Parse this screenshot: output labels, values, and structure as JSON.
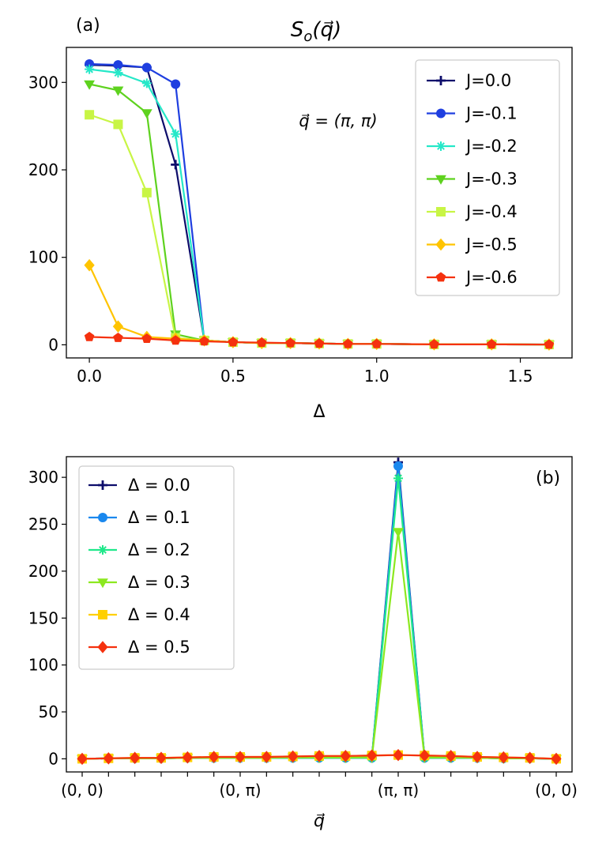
{
  "chart_data": [
    {
      "panel_label": "(a)",
      "type": "line",
      "title": "S_o(q)",
      "title_parts": {
        "main": "S",
        "sub": "o",
        "arg": "(q⃗)"
      },
      "annotation": "q⃗ = (π, π)",
      "xlabel": "Δ",
      "ylabel": "",
      "xlim": [
        -0.08,
        1.68
      ],
      "ylim": [
        -15,
        340
      ],
      "xticks": [
        0.0,
        0.5,
        1.0,
        1.5
      ],
      "xtick_labels": [
        "0.0",
        "0.5",
        "1.0",
        "1.5"
      ],
      "yticks": [
        0,
        100,
        200,
        300
      ],
      "ytick_labels": [
        "0",
        "100",
        "200",
        "300"
      ],
      "x": [
        0.0,
        0.1,
        0.2,
        0.3,
        0.4,
        0.5,
        0.6,
        0.7,
        0.8,
        0.9,
        1.0,
        1.2,
        1.4,
        1.6
      ],
      "legend_position": "top-right",
      "series": [
        {
          "name": "J=0.0",
          "color": "#0d0d6b",
          "marker": "plus",
          "values": [
            320,
            319,
            317,
            206,
            5,
            3,
            2,
            2,
            1.5,
            1,
            1,
            0.5,
            0.5,
            0.3
          ]
        },
        {
          "name": "J=-0.1",
          "color": "#1f3fe0",
          "marker": "circle",
          "values": [
            321,
            320,
            317,
            298,
            5,
            3,
            2,
            2,
            1.5,
            1,
            1,
            0.5,
            0.5,
            0.3
          ]
        },
        {
          "name": "J=-0.2",
          "color": "#25e8c8",
          "marker": "asterisk",
          "values": [
            315,
            311,
            299,
            241,
            5,
            3,
            2,
            2,
            1.5,
            1,
            1,
            0.5,
            0.5,
            0.3
          ]
        },
        {
          "name": "J=-0.3",
          "color": "#5ed21e",
          "marker": "triangle-down",
          "values": [
            298,
            291,
            265,
            12,
            5,
            3,
            2,
            2,
            1.5,
            1,
            1,
            0.5,
            0.5,
            0.3
          ]
        },
        {
          "name": "J=-0.4",
          "color": "#c8f545",
          "marker": "square",
          "values": [
            263,
            252,
            174,
            8,
            5,
            3,
            2,
            2,
            1.5,
            1,
            1,
            0.5,
            0.5,
            0.3
          ]
        },
        {
          "name": "J=-0.5",
          "color": "#ffc400",
          "marker": "diamond",
          "values": [
            91,
            21,
            9,
            7,
            5,
            3,
            2,
            2,
            1.5,
            1,
            1,
            0.5,
            0.5,
            0.3
          ]
        },
        {
          "name": "J=-0.6",
          "color": "#f5310e",
          "marker": "pentagon",
          "values": [
            9,
            8,
            7,
            5,
            4,
            3,
            2.5,
            2,
            1.5,
            1,
            1,
            0.5,
            0.5,
            0.3
          ]
        }
      ]
    },
    {
      "panel_label": "(b)",
      "type": "line",
      "title": "",
      "xlabel": "q⃗",
      "ylabel": "",
      "xlim": [
        -0.6,
        18.6
      ],
      "ylim": [
        -14,
        322
      ],
      "x": [
        0,
        1,
        2,
        3,
        4,
        5,
        6,
        7,
        8,
        9,
        10,
        11,
        12,
        13,
        14,
        15,
        16,
        17,
        18
      ],
      "xticks": [
        0,
        1,
        2,
        3,
        4,
        5,
        6,
        7,
        8,
        9,
        10,
        11,
        12,
        13,
        14,
        15,
        16,
        17,
        18
      ],
      "xtick_labels": [
        "(0, 0)",
        "",
        "",
        "",
        "",
        "",
        "(0, π)",
        "",
        "",
        "",
        "",
        "",
        "(π, π)",
        "",
        "",
        "",
        "",
        "",
        "(0, 0)"
      ],
      "yticks": [
        0,
        50,
        100,
        150,
        200,
        250,
        300
      ],
      "ytick_labels": [
        "0",
        "50",
        "100",
        "150",
        "200",
        "250",
        "300"
      ],
      "legend_position": "top-left",
      "series": [
        {
          "name": "Δ = 0.0",
          "color": "#0d0d6b",
          "marker": "plus",
          "values": [
            0,
            0.5,
            0.5,
            0.5,
            1,
            1,
            1,
            1,
            1,
            1,
            1,
            1,
            316,
            1,
            1,
            1,
            0.5,
            0.5,
            0
          ]
        },
        {
          "name": "Δ = 0.1",
          "color": "#1a88ee",
          "marker": "circle",
          "values": [
            0,
            0.5,
            0.5,
            0.5,
            1,
            1,
            1,
            1,
            1,
            1,
            1,
            1,
            312,
            1,
            1,
            1,
            0.5,
            0.5,
            0
          ]
        },
        {
          "name": "Δ = 0.2",
          "color": "#1fe88a",
          "marker": "asterisk",
          "values": [
            0,
            0.5,
            0.5,
            0.5,
            1,
            1,
            1,
            1,
            1,
            1,
            1,
            1,
            299,
            1,
            1,
            1,
            0.5,
            0.5,
            0
          ]
        },
        {
          "name": "Δ = 0.3",
          "color": "#8ce81f",
          "marker": "triangle-down",
          "values": [
            0,
            0.5,
            0.5,
            0.5,
            1,
            1,
            1,
            1,
            1.5,
            1.5,
            1.5,
            1.5,
            242,
            1.5,
            1.5,
            1,
            0.5,
            0.5,
            0
          ]
        },
        {
          "name": "Δ = 0.4",
          "color": "#ffd000",
          "marker": "square",
          "values": [
            0,
            0.5,
            1,
            1,
            1.5,
            2,
            2,
            2,
            2.5,
            3,
            3,
            3.5,
            4,
            3.5,
            3,
            2,
            1.5,
            1,
            0
          ]
        },
        {
          "name": "Δ = 0.5",
          "color": "#f5310e",
          "marker": "diamond",
          "values": [
            0,
            0.5,
            1,
            1,
            1.5,
            2,
            2,
            2,
            2.5,
            3,
            3,
            3.5,
            4,
            3.5,
            3,
            2,
            1.5,
            1,
            0
          ]
        }
      ]
    }
  ]
}
